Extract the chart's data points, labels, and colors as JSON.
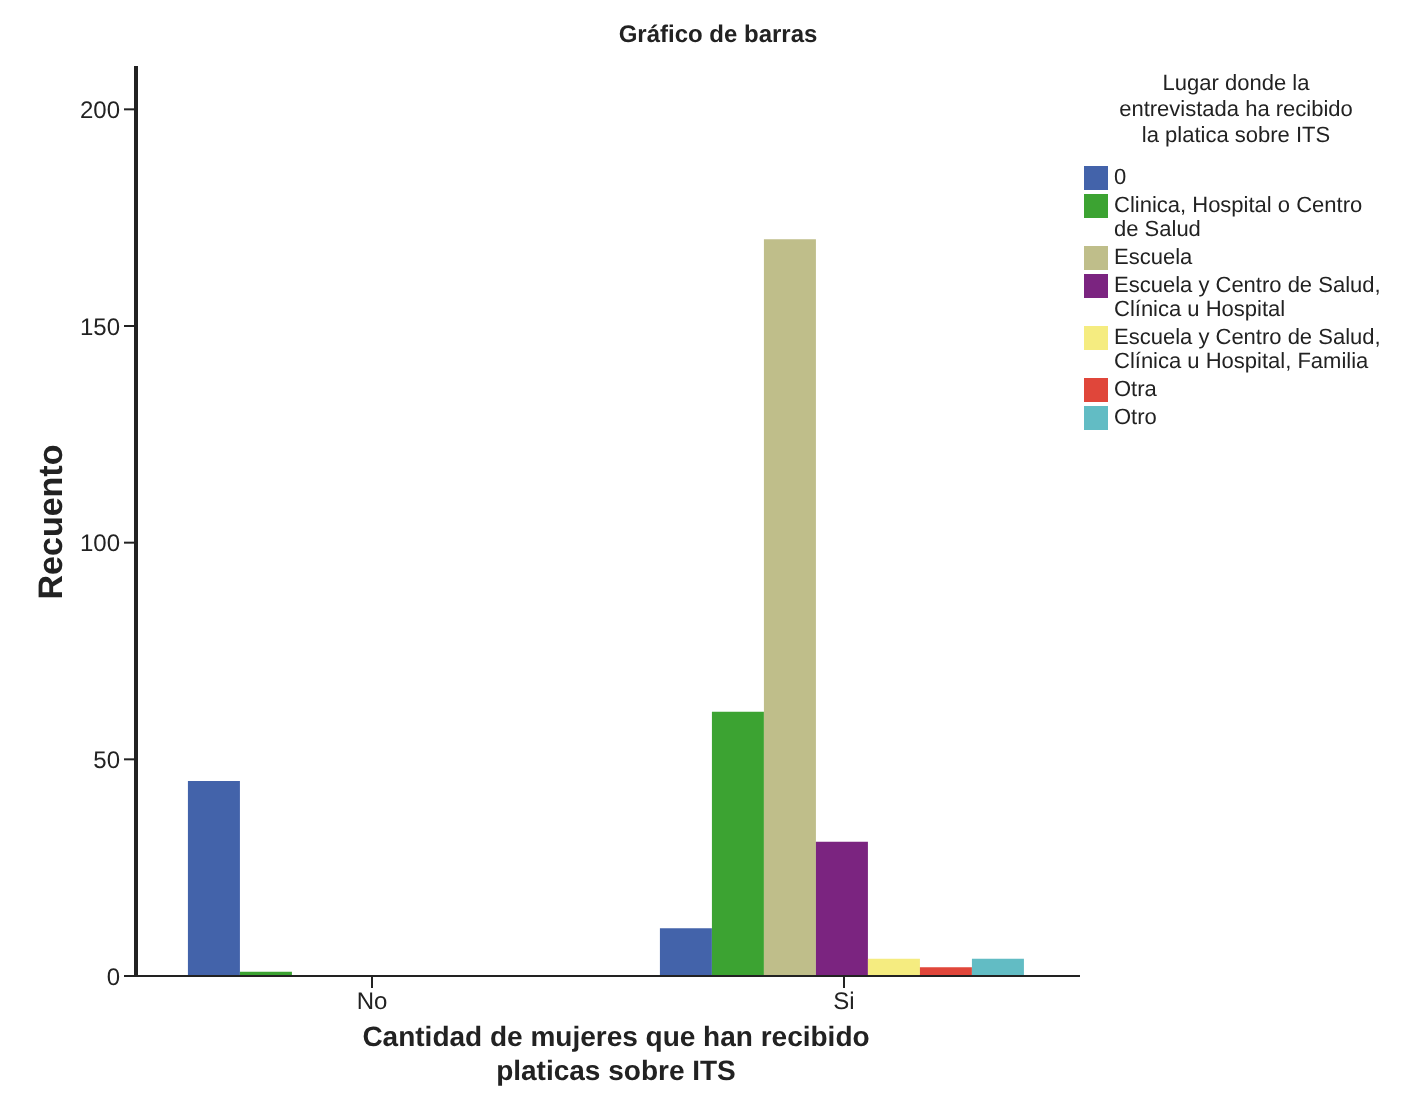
{
  "chart_data": {
    "type": "bar",
    "title": "Gráfico de barras",
    "xlabel": "Cantidad de mujeres que han recibido platicas sobre ITS",
    "ylabel": "Recuento",
    "legend_title": "Lugar donde la entrevistada ha recibido la platica sobre ITS",
    "categories": [
      "No",
      "Si"
    ],
    "series": [
      {
        "name": "0",
        "color": "#4363aa",
        "values": [
          45,
          11
        ]
      },
      {
        "name": "Clinica, Hospital o Centro de Salud",
        "color": "#3ca332",
        "values": [
          1,
          61
        ]
      },
      {
        "name": "Escuela",
        "color": "#bfbe8a",
        "values": [
          0,
          170
        ]
      },
      {
        "name": "Escuela y Centro de Salud, Clínica u Hospital",
        "color": "#7b2480",
        "values": [
          0,
          31
        ]
      },
      {
        "name": "Escuela y Centro de Salud, Clínica u Hospital, Familia",
        "color": "#f5ec80",
        "values": [
          0,
          4
        ]
      },
      {
        "name": "Otra",
        "color": "#e0463a",
        "values": [
          0,
          2
        ]
      },
      {
        "name": "Otro",
        "color": "#62bcc4",
        "values": [
          0,
          4
        ]
      }
    ],
    "ylim": [
      0,
      210
    ],
    "yticks": [
      0,
      50,
      100,
      150,
      200
    ],
    "grid": false,
    "legend": "top right"
  }
}
